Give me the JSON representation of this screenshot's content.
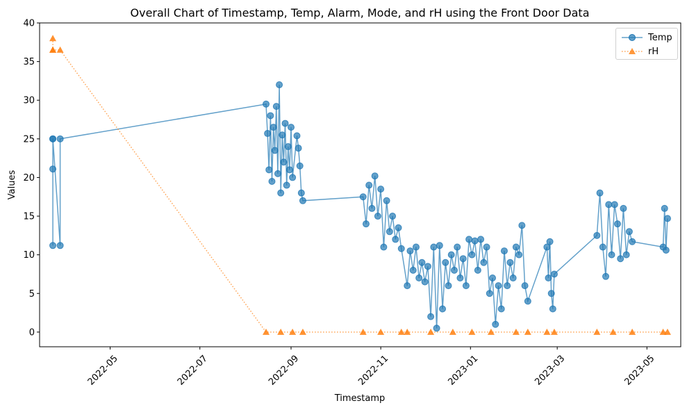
{
  "chart_data": {
    "type": "line",
    "title": "Overall Chart of Timestamp, Temp, Alarm, Mode, and rH using the Front Door Data",
    "xlabel": "Timestamp",
    "ylabel": "Values",
    "xlim": [
      "2022-03-14",
      "2023-05-24"
    ],
    "ylim": [
      -1.9,
      40
    ],
    "x_ticks": [
      "2022-05",
      "2022-07",
      "2022-09",
      "2022-11",
      "2023-01",
      "2023-03",
      "2023-05"
    ],
    "y_ticks": [
      0,
      5,
      10,
      15,
      20,
      25,
      30,
      35,
      40
    ],
    "grid": false,
    "legend_position": "top-right",
    "series": [
      {
        "name": "Temp",
        "color": "#1f77b4",
        "marker": "circle",
        "linestyle": "solid",
        "x": [
          "2022-03-23",
          "2022-03-23",
          "2022-03-23",
          "2022-03-23",
          "2022-03-28",
          "2022-03-28",
          "2022-08-15",
          "2022-08-16",
          "2022-08-17",
          "2022-08-18",
          "2022-08-19",
          "2022-08-20",
          "2022-08-21",
          "2022-08-22",
          "2022-08-23",
          "2022-08-24",
          "2022-08-25",
          "2022-08-26",
          "2022-08-27",
          "2022-08-28",
          "2022-08-29",
          "2022-08-30",
          "2022-08-31",
          "2022-09-01",
          "2022-09-02",
          "2022-09-05",
          "2022-09-06",
          "2022-09-07",
          "2022-09-08",
          "2022-09-09",
          "2022-10-20",
          "2022-10-22",
          "2022-10-24",
          "2022-10-26",
          "2022-10-28",
          "2022-10-30",
          "2022-11-01",
          "2022-11-03",
          "2022-11-05",
          "2022-11-07",
          "2022-11-09",
          "2022-11-11",
          "2022-11-13",
          "2022-11-15",
          "2022-11-19",
          "2022-11-21",
          "2022-11-23",
          "2022-11-25",
          "2022-11-27",
          "2022-11-29",
          "2022-12-01",
          "2022-12-03",
          "2022-12-05",
          "2022-12-07",
          "2022-12-09",
          "2022-12-11",
          "2022-12-13",
          "2022-12-15",
          "2022-12-17",
          "2022-12-19",
          "2022-12-21",
          "2022-12-23",
          "2022-12-25",
          "2022-12-27",
          "2022-12-29",
          "2022-12-31",
          "2023-01-02",
          "2023-01-04",
          "2023-01-06",
          "2023-01-08",
          "2023-01-10",
          "2023-01-12",
          "2023-01-14",
          "2023-01-16",
          "2023-01-18",
          "2023-01-20",
          "2023-01-22",
          "2023-01-24",
          "2023-01-26",
          "2023-01-28",
          "2023-01-30",
          "2023-02-01",
          "2023-02-03",
          "2023-02-05",
          "2023-02-07",
          "2023-02-09",
          "2023-02-22",
          "2023-02-23",
          "2023-02-24",
          "2023-02-25",
          "2023-02-26",
          "2023-02-27",
          "2023-03-28",
          "2023-03-30",
          "2023-04-01",
          "2023-04-03",
          "2023-04-05",
          "2023-04-07",
          "2023-04-09",
          "2023-04-11",
          "2023-04-13",
          "2023-04-15",
          "2023-04-17",
          "2023-04-19",
          "2023-04-21",
          "2023-05-12",
          "2023-05-13",
          "2023-05-14",
          "2023-05-15"
        ],
        "y": [
          25,
          11.2,
          21.1,
          25,
          11.2,
          25,
          29.5,
          25.7,
          21,
          28,
          19.5,
          26.5,
          23.5,
          29.2,
          20.5,
          32,
          18,
          25.5,
          22,
          27,
          19,
          24,
          21,
          26.5,
          20,
          25.4,
          23.8,
          21.5,
          18,
          17,
          17.5,
          14,
          19,
          16,
          20.2,
          15,
          18.5,
          11,
          17,
          13,
          15,
          12,
          13.5,
          10.8,
          6,
          10.5,
          8,
          11,
          7,
          9,
          6.5,
          8.5,
          2,
          11,
          0.5,
          11.2,
          3,
          9,
          6,
          10,
          8,
          11,
          7,
          9.5,
          6,
          12,
          10,
          11.8,
          8,
          12,
          9,
          11,
          5,
          7,
          1,
          6,
          3,
          10.5,
          6,
          9,
          7,
          11,
          10,
          13.8,
          6,
          4,
          11,
          7,
          11.7,
          5,
          3,
          7.5,
          12.5,
          18,
          11,
          7.2,
          16.5,
          10,
          16.5,
          14,
          9.5,
          16,
          10,
          13,
          11.7,
          11,
          16,
          10.6,
          14.7
        ]
      },
      {
        "name": "rH",
        "color": "#ff7f0e",
        "marker": "triangle",
        "linestyle": "dotted",
        "x": [
          "2022-03-23",
          "2022-03-23",
          "2022-03-23",
          "2022-03-28",
          "2022-08-15",
          "2022-08-25",
          "2022-09-02",
          "2022-09-09",
          "2022-10-20",
          "2022-11-01",
          "2022-11-15",
          "2022-11-19",
          "2022-12-05",
          "2022-12-20",
          "2023-01-02",
          "2023-01-15",
          "2023-02-01",
          "2023-02-09",
          "2023-02-22",
          "2023-02-27",
          "2023-03-28",
          "2023-04-08",
          "2023-04-21",
          "2023-05-12",
          "2023-05-15"
        ],
        "y": [
          38,
          36.5,
          36.5,
          36.5,
          0,
          0,
          0,
          0,
          0,
          0,
          0,
          0,
          0,
          0,
          0,
          0,
          0,
          0,
          0,
          0,
          0,
          0,
          0,
          0,
          0
        ]
      }
    ]
  }
}
